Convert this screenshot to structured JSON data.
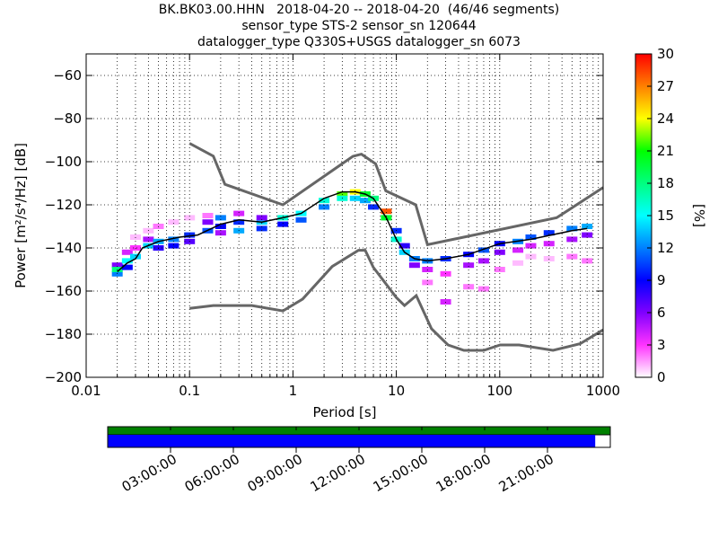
{
  "title": {
    "line1": "BK.BK03.00.HHN   2018-04-20 -- 2018-04-20  (46/46 segments)",
    "line2": "sensor_type STS-2 sensor_sn 120644",
    "line3": "datalogger_type Q330S+USGS datalogger_sn 6073"
  },
  "chart_data": [
    {
      "type": "heatmap",
      "xlabel": "Period [s]",
      "ylabel": "Power [m²/s⁴/Hz] [dB]",
      "xscale": "log",
      "xlim": [
        0.01,
        1000
      ],
      "ylim": [
        -200,
        -50
      ],
      "xticks": [
        {
          "value": 0.01,
          "label": "0.01"
        },
        {
          "value": 0.1,
          "label": "0.1"
        },
        {
          "value": 1,
          "label": "1"
        },
        {
          "value": 10,
          "label": "10"
        },
        {
          "value": 100,
          "label": "100"
        },
        {
          "value": 1000,
          "label": "1000"
        }
      ],
      "yticks": [
        {
          "value": -60,
          "label": "−60"
        },
        {
          "value": -80,
          "label": "−80"
        },
        {
          "value": -100,
          "label": "−100"
        },
        {
          "value": -120,
          "label": "−120"
        },
        {
          "value": -140,
          "label": "−140"
        },
        {
          "value": -160,
          "label": "−160"
        },
        {
          "value": -180,
          "label": "−180"
        },
        {
          "value": -200,
          "label": "−200"
        }
      ],
      "grid": true,
      "colorbar": {
        "label": "[%]",
        "range": [
          0,
          30
        ],
        "ticks": [
          {
            "value": 0,
            "label": "0"
          },
          {
            "value": 3,
            "label": "3"
          },
          {
            "value": 6,
            "label": "6"
          },
          {
            "value": 9,
            "label": "9"
          },
          {
            "value": 12,
            "label": "12"
          },
          {
            "value": 15,
            "label": "15"
          },
          {
            "value": 18,
            "label": "18"
          },
          {
            "value": 21,
            "label": "21"
          },
          {
            "value": 24,
            "label": "24"
          },
          {
            "value": 27,
            "label": "27"
          },
          {
            "value": 30,
            "label": "30"
          }
        ],
        "colormap": [
          "#ffffff",
          "#ff33ff",
          "#8000ff",
          "#0000ff",
          "#0080ff",
          "#00ffff",
          "#00ff80",
          "#00ff00",
          "#ffff00",
          "#ff8000",
          "#ff0000"
        ]
      },
      "high_noise_model": [
        {
          "x": 0.1,
          "y": -91.5
        },
        {
          "x": 0.17,
          "y": -97.4
        },
        {
          "x": 0.22,
          "y": -110.5
        },
        {
          "x": 0.8,
          "y": -120
        },
        {
          "x": 3.8,
          "y": -97.5
        },
        {
          "x": 4.6,
          "y": -96.5
        },
        {
          "x": 6.3,
          "y": -101
        },
        {
          "x": 7.9,
          "y": -113.5
        },
        {
          "x": 15.4,
          "y": -120
        },
        {
          "x": 20,
          "y": -138.5
        },
        {
          "x": 354.8,
          "y": -126
        },
        {
          "x": 1000,
          "y": -112
        }
      ],
      "low_noise_model": [
        {
          "x": 0.1,
          "y": -168
        },
        {
          "x": 0.17,
          "y": -166.7
        },
        {
          "x": 0.4,
          "y": -166.7
        },
        {
          "x": 0.8,
          "y": -169.2
        },
        {
          "x": 1.24,
          "y": -163.7
        },
        {
          "x": 2.4,
          "y": -148.6
        },
        {
          "x": 4.3,
          "y": -141.1
        },
        {
          "x": 5,
          "y": -141.1
        },
        {
          "x": 6,
          "y": -149
        },
        {
          "x": 10,
          "y": -163
        },
        {
          "x": 12,
          "y": -166.7
        },
        {
          "x": 15.6,
          "y": -162.1
        },
        {
          "x": 21.9,
          "y": -177.5
        },
        {
          "x": 31.6,
          "y": -185
        },
        {
          "x": 45,
          "y": -187.5
        },
        {
          "x": 70,
          "y": -187.5
        },
        {
          "x": 101,
          "y": -185
        },
        {
          "x": 154,
          "y": -185
        },
        {
          "x": 328,
          "y": -187.5
        },
        {
          "x": 600,
          "y": -184.4
        },
        {
          "x": 1000,
          "y": -178
        }
      ],
      "mode_curve": [
        {
          "x": 0.02,
          "y": -151
        },
        {
          "x": 0.025,
          "y": -147
        },
        {
          "x": 0.03,
          "y": -145
        },
        {
          "x": 0.035,
          "y": -140
        },
        {
          "x": 0.05,
          "y": -137
        },
        {
          "x": 0.08,
          "y": -135
        },
        {
          "x": 0.12,
          "y": -134
        },
        {
          "x": 0.2,
          "y": -129
        },
        {
          "x": 0.3,
          "y": -127
        },
        {
          "x": 0.5,
          "y": -128
        },
        {
          "x": 0.8,
          "y": -126
        },
        {
          "x": 1.2,
          "y": -124
        },
        {
          "x": 2,
          "y": -117
        },
        {
          "x": 3,
          "y": -114
        },
        {
          "x": 4,
          "y": -114
        },
        {
          "x": 5,
          "y": -115
        },
        {
          "x": 6,
          "y": -117
        },
        {
          "x": 8,
          "y": -126
        },
        {
          "x": 10,
          "y": -136
        },
        {
          "x": 12,
          "y": -142
        },
        {
          "x": 15,
          "y": -145
        },
        {
          "x": 20,
          "y": -146
        },
        {
          "x": 30,
          "y": -145
        },
        {
          "x": 50,
          "y": -143
        },
        {
          "x": 100,
          "y": -138
        },
        {
          "x": 200,
          "y": -136
        },
        {
          "x": 500,
          "y": -132
        },
        {
          "x": 700,
          "y": -131
        }
      ],
      "psd_density": [
        {
          "x": 0.02,
          "y": -152,
          "pct": 12
        },
        {
          "x": 0.02,
          "y": -148,
          "pct": 6
        },
        {
          "x": 0.02,
          "y": -150,
          "pct": 18
        },
        {
          "x": 0.025,
          "y": -146,
          "pct": 15
        },
        {
          "x": 0.025,
          "y": -142,
          "pct": 4
        },
        {
          "x": 0.025,
          "y": -149,
          "pct": 9
        },
        {
          "x": 0.03,
          "y": -144,
          "pct": 14
        },
        {
          "x": 0.03,
          "y": -140,
          "pct": 3
        },
        {
          "x": 0.03,
          "y": -135,
          "pct": 1
        },
        {
          "x": 0.04,
          "y": -139,
          "pct": 14
        },
        {
          "x": 0.04,
          "y": -136,
          "pct": 5
        },
        {
          "x": 0.04,
          "y": -132,
          "pct": 1
        },
        {
          "x": 0.05,
          "y": -137,
          "pct": 13
        },
        {
          "x": 0.05,
          "y": -140,
          "pct": 8
        },
        {
          "x": 0.05,
          "y": -130,
          "pct": 2
        },
        {
          "x": 0.07,
          "y": -136,
          "pct": 12
        },
        {
          "x": 0.07,
          "y": -139,
          "pct": 9
        },
        {
          "x": 0.07,
          "y": -128,
          "pct": 1
        },
        {
          "x": 0.1,
          "y": -134,
          "pct": 10
        },
        {
          "x": 0.1,
          "y": -137,
          "pct": 7
        },
        {
          "x": 0.1,
          "y": -126,
          "pct": 1
        },
        {
          "x": 0.15,
          "y": -132,
          "pct": 11
        },
        {
          "x": 0.15,
          "y": -128,
          "pct": 6
        },
        {
          "x": 0.15,
          "y": -125,
          "pct": 2
        },
        {
          "x": 0.2,
          "y": -130,
          "pct": 9
        },
        {
          "x": 0.2,
          "y": -126,
          "pct": 12
        },
        {
          "x": 0.2,
          "y": -133,
          "pct": 5
        },
        {
          "x": 0.3,
          "y": -128,
          "pct": 10
        },
        {
          "x": 0.3,
          "y": -132,
          "pct": 13
        },
        {
          "x": 0.3,
          "y": -124,
          "pct": 4
        },
        {
          "x": 0.5,
          "y": -128,
          "pct": 14
        },
        {
          "x": 0.5,
          "y": -131,
          "pct": 10
        },
        {
          "x": 0.5,
          "y": -126,
          "pct": 6
        },
        {
          "x": 0.8,
          "y": -126,
          "pct": 16
        },
        {
          "x": 0.8,
          "y": -129,
          "pct": 9
        },
        {
          "x": 1.2,
          "y": -124,
          "pct": 15
        },
        {
          "x": 1.2,
          "y": -127,
          "pct": 11
        },
        {
          "x": 2,
          "y": -118,
          "pct": 16
        },
        {
          "x": 2,
          "y": -121,
          "pct": 12
        },
        {
          "x": 3,
          "y": -115,
          "pct": 22
        },
        {
          "x": 3,
          "y": -117,
          "pct": 16
        },
        {
          "x": 4,
          "y": -114,
          "pct": 24
        },
        {
          "x": 4,
          "y": -117,
          "pct": 14
        },
        {
          "x": 5,
          "y": -115,
          "pct": 20
        },
        {
          "x": 5,
          "y": -118,
          "pct": 13
        },
        {
          "x": 6,
          "y": -117,
          "pct": 18
        },
        {
          "x": 6,
          "y": -121,
          "pct": 10
        },
        {
          "x": 8,
          "y": -126,
          "pct": 20
        },
        {
          "x": 8,
          "y": -123,
          "pct": 28
        },
        {
          "x": 10,
          "y": -136,
          "pct": 16
        },
        {
          "x": 10,
          "y": -132,
          "pct": 10
        },
        {
          "x": 12,
          "y": -142,
          "pct": 14
        },
        {
          "x": 12,
          "y": -139,
          "pct": 8
        },
        {
          "x": 15,
          "y": -145,
          "pct": 12
        },
        {
          "x": 15,
          "y": -148,
          "pct": 6
        },
        {
          "x": 20,
          "y": -146,
          "pct": 12
        },
        {
          "x": 20,
          "y": -150,
          "pct": 4
        },
        {
          "x": 20,
          "y": -156,
          "pct": 2
        },
        {
          "x": 30,
          "y": -145,
          "pct": 10
        },
        {
          "x": 30,
          "y": -152,
          "pct": 3
        },
        {
          "x": 30,
          "y": -165,
          "pct": 4
        },
        {
          "x": 50,
          "y": -143,
          "pct": 9
        },
        {
          "x": 50,
          "y": -148,
          "pct": 5
        },
        {
          "x": 50,
          "y": -158,
          "pct": 2
        },
        {
          "x": 70,
          "y": -141,
          "pct": 11
        },
        {
          "x": 70,
          "y": -146,
          "pct": 5
        },
        {
          "x": 70,
          "y": -159,
          "pct": 2
        },
        {
          "x": 100,
          "y": -138,
          "pct": 9
        },
        {
          "x": 100,
          "y": -142,
          "pct": 6
        },
        {
          "x": 100,
          "y": -150,
          "pct": 2
        },
        {
          "x": 150,
          "y": -137,
          "pct": 12
        },
        {
          "x": 150,
          "y": -141,
          "pct": 4
        },
        {
          "x": 150,
          "y": -147,
          "pct": 1
        },
        {
          "x": 200,
          "y": -135,
          "pct": 11
        },
        {
          "x": 200,
          "y": -139,
          "pct": 4
        },
        {
          "x": 200,
          "y": -144,
          "pct": 1
        },
        {
          "x": 300,
          "y": -133,
          "pct": 10
        },
        {
          "x": 300,
          "y": -138,
          "pct": 4
        },
        {
          "x": 300,
          "y": -145,
          "pct": 1
        },
        {
          "x": 500,
          "y": -131,
          "pct": 12
        },
        {
          "x": 500,
          "y": -136,
          "pct": 5
        },
        {
          "x": 500,
          "y": -144,
          "pct": 2
        },
        {
          "x": 700,
          "y": -130,
          "pct": 13
        },
        {
          "x": 700,
          "y": -134,
          "pct": 6
        },
        {
          "x": 700,
          "y": -146,
          "pct": 2
        }
      ]
    },
    {
      "type": "bar",
      "title": "",
      "data_coverage_fraction": 0.97,
      "tick_labels": [
        "03:00:00",
        "06:00:00",
        "09:00:00",
        "12:00:00",
        "15:00:00",
        "18:00:00",
        "21:00:00"
      ],
      "colors": {
        "availability": "#008000",
        "coverage": "#0000ff",
        "gap": "#ffffff"
      }
    }
  ]
}
